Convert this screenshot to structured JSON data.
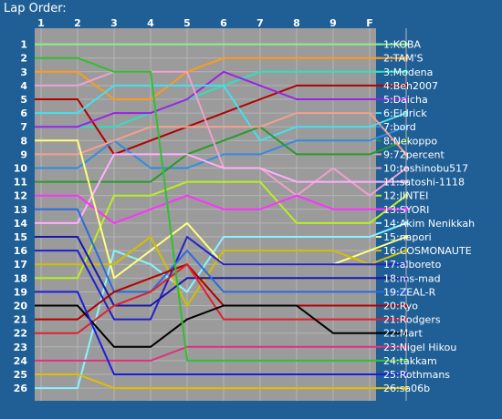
{
  "chart_data": {
    "type": "line",
    "title": "Lap Order:",
    "categories": [
      "1",
      "2",
      "3",
      "4",
      "5",
      "6",
      "7",
      "8",
      "9",
      "F"
    ],
    "y_ticks": [
      "1",
      "2",
      "3",
      "4",
      "5",
      "6",
      "7",
      "8",
      "9",
      "10",
      "11",
      "12",
      "13",
      "14",
      "15",
      "16",
      "17",
      "18",
      "19",
      "20",
      "21",
      "22",
      "23",
      "24",
      "25",
      "26"
    ],
    "ylim": [
      1,
      26
    ],
    "y_inverted": true,
    "grid": true,
    "legend_placement": "right, aligned with finishing positions",
    "colors": {
      "background": "#1f5f96",
      "plot_background": "#9b9b9b",
      "grid": "#b4b4b4",
      "axis_text": "#ffffff"
    },
    "series": [
      {
        "name": "1:KOBA",
        "color": "#8cf08c",
        "start": 1,
        "values": [
          1,
          1,
          1,
          1,
          1,
          1,
          1,
          1,
          1,
          1
        ]
      },
      {
        "name": "2:TAM'S",
        "color": "#ff9a1a",
        "start": 3,
        "values": [
          3,
          5,
          5,
          3,
          2,
          2,
          2,
          2,
          2,
          2
        ]
      },
      {
        "name": "3:Modena",
        "color": "#2ee0c0",
        "start": 7,
        "values": [
          7,
          7,
          6,
          5,
          4,
          3,
          3,
          3,
          3,
          3
        ]
      },
      {
        "name": "4:Beh2007",
        "color": "#b00000",
        "start": 5,
        "values": [
          5,
          9,
          8,
          7,
          6,
          5,
          4,
          4,
          4,
          4
        ]
      },
      {
        "name": "5:Daicha",
        "color": "#9a22e6",
        "start": 7,
        "values": [
          7,
          6,
          6,
          5,
          3,
          4,
          5,
          5,
          5,
          5
        ]
      },
      {
        "name": "6:Eldrick",
        "color": "#44e0f0",
        "start": 6,
        "values": [
          6,
          4,
          4,
          4,
          4,
          8,
          7,
          7,
          7,
          6
        ]
      },
      {
        "name": "7:bord",
        "color": "#2f8de0",
        "start": 10,
        "values": [
          10,
          8,
          10,
          10,
          9,
          9,
          8,
          8,
          8,
          7
        ]
      },
      {
        "name": "8:Nekoppo",
        "color": "#2a9a2a",
        "start": 11,
        "values": [
          11,
          11,
          11,
          9,
          8,
          7,
          9,
          9,
          9,
          8
        ]
      },
      {
        "name": "9:72percent",
        "color": "#f4a090",
        "start": 9,
        "values": [
          9,
          8,
          7,
          7,
          7,
          7,
          6,
          6,
          6,
          9
        ]
      },
      {
        "name": "10:toshinobu517",
        "color": "#f0a0d0",
        "start": 4,
        "values": [
          4,
          3,
          3,
          3,
          10,
          10,
          12,
          10,
          12,
          10
        ]
      },
      {
        "name": "11:satoshi-1118",
        "color": "#ffb0ff",
        "start": 14,
        "values": [
          14,
          9,
          9,
          9,
          10,
          10,
          11,
          11,
          11,
          11
        ]
      },
      {
        "name": "12:JINTEI",
        "color": "#b8f020",
        "start": 18,
        "values": [
          18,
          12,
          12,
          11,
          11,
          11,
          14,
          14,
          14,
          12
        ]
      },
      {
        "name": "13:SYORI",
        "color": "#ff30ff",
        "start": 12,
        "values": [
          12,
          14,
          13,
          12,
          13,
          13,
          12,
          13,
          13,
          13
        ]
      },
      {
        "name": "14:Akim Nenikkah",
        "color": "#88f4ff",
        "start": 26,
        "values": [
          26,
          16,
          17,
          19,
          15,
          15,
          15,
          15,
          15,
          14
        ]
      },
      {
        "name": "15:napori",
        "color": "#ffff80",
        "start": 8,
        "values": [
          8,
          18,
          16,
          14,
          17,
          17,
          17,
          17,
          16,
          15
        ]
      },
      {
        "name": "16:COSMONAUTE",
        "color": "#d0c000",
        "start": 17,
        "values": [
          17,
          17,
          15,
          20,
          16,
          16,
          16,
          16,
          17,
          16
        ]
      },
      {
        "name": "17:alboreto",
        "color": "#2020d0",
        "start": 16,
        "values": [
          16,
          21,
          21,
          15,
          17,
          17,
          17,
          17,
          17,
          17
        ]
      },
      {
        "name": "18:ms-mad",
        "color": "#1818a8",
        "start": 15,
        "values": [
          15,
          20,
          20,
          18,
          18,
          18,
          18,
          18,
          18,
          18
        ]
      },
      {
        "name": "19:ZEAL-R",
        "color": "#2a6ae0",
        "start": 13,
        "values": [
          13,
          19,
          19,
          16,
          19,
          19,
          19,
          19,
          19,
          19
        ]
      },
      {
        "name": "20:Ryo",
        "color": "#b00000",
        "start": 21,
        "values": [
          21,
          19,
          18,
          17,
          20,
          20,
          20,
          20,
          20,
          20
        ]
      },
      {
        "name": "21:Rodgers",
        "color": "#e02030",
        "start": 22,
        "values": [
          22,
          20,
          19,
          17,
          21,
          21,
          21,
          21,
          21,
          21
        ]
      },
      {
        "name": "22:Mart",
        "color": "#000000",
        "start": 20,
        "values": [
          20,
          23,
          23,
          21,
          20,
          20,
          20,
          22,
          22,
          22
        ]
      },
      {
        "name": "23:Nigel Hikou",
        "color": "#e03080",
        "start": 24,
        "values": [
          24,
          24,
          24,
          23,
          23,
          23,
          23,
          23,
          23,
          23
        ]
      },
      {
        "name": "24:takkam",
        "color": "#30c030",
        "start": 2,
        "values": [
          2,
          3,
          3,
          24,
          24,
          24,
          24,
          24,
          24,
          24
        ]
      },
      {
        "name": "25:Rothmans",
        "color": "#1c1ce0",
        "start": 19,
        "values": [
          19,
          25,
          25,
          25,
          25,
          25,
          25,
          25,
          25,
          25
        ]
      },
      {
        "name": "26:sa06b",
        "color": "#e0c000",
        "start": 25,
        "values": [
          25,
          26,
          26,
          26,
          26,
          26,
          26,
          26,
          26,
          26
        ]
      }
    ]
  }
}
